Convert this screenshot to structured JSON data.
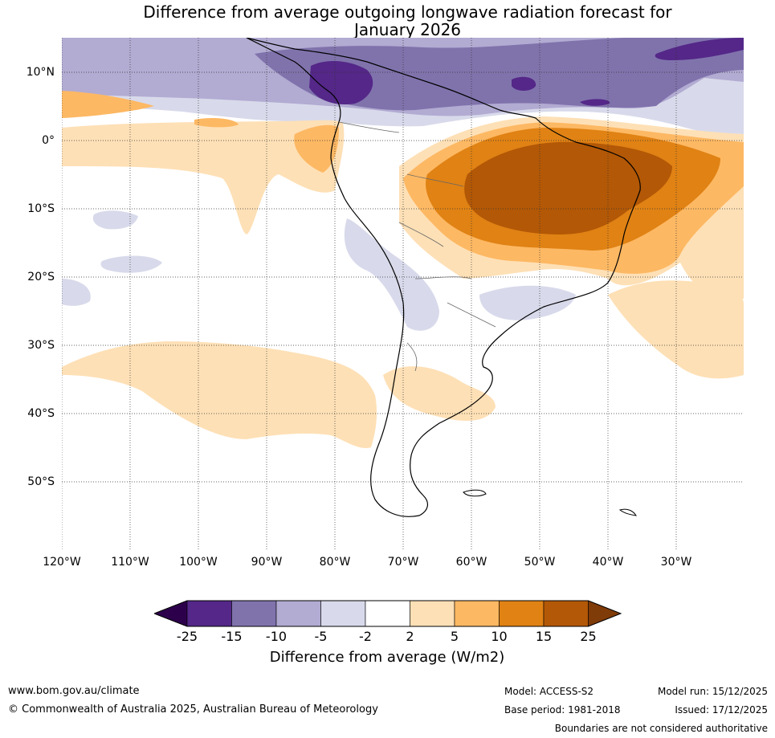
{
  "title": {
    "line1": "Difference from average outgoing longwave radiation forecast for",
    "line2": "January 2026"
  },
  "map": {
    "lat_labels": [
      "10°N",
      "0°",
      "10°S",
      "20°S",
      "30°S",
      "40°S",
      "50°S"
    ],
    "lon_labels": [
      "120°W",
      "110°W",
      "100°W",
      "90°W",
      "80°W",
      "70°W",
      "60°W",
      "50°W",
      "40°W",
      "30°W"
    ]
  },
  "colorbar": {
    "label": "Difference from average (W/m2)",
    "ticks": [
      "-25",
      "-15",
      "-10",
      "-5",
      "-2",
      "2",
      "5",
      "10",
      "15",
      "25"
    ],
    "colors": [
      "#2d004b",
      "#542788",
      "#8073ac",
      "#b2abd2",
      "#d8daeb",
      "#ffffff",
      "#fee0b6",
      "#fdb863",
      "#e08214",
      "#b35806",
      "#7f3b08"
    ]
  },
  "footer": {
    "url": "www.bom.gov.au/climate",
    "copyright": "© Commonwealth of Australia 2025, Australian Bureau of Meteorology",
    "model": "Model: ACCESS-S2",
    "base_period": "Base period: 1981-2018",
    "model_run": "Model run: 15/12/2025",
    "issued": "Issued: 17/12/2025",
    "disclaimer": "Boundaries are not considered authoritative"
  }
}
